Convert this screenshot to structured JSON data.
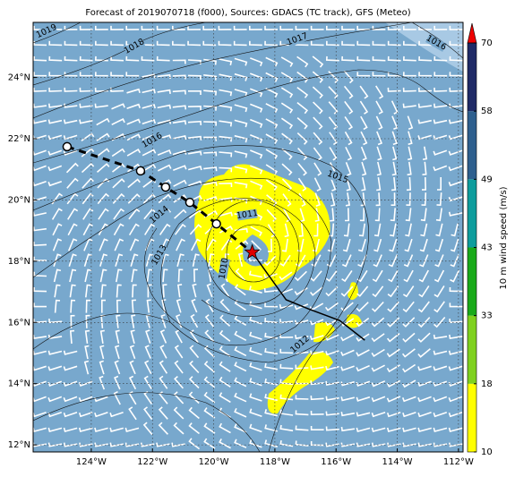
{
  "map": {
    "title": "Forecast of 2019070718 (f000), Sources: GDACS (TC track), GFS (Meteo)",
    "lonlim": [
      -125.9,
      -111.85
    ],
    "latlim": [
      11.77,
      25.8
    ],
    "lon_ticks": [
      {
        "value": -124,
        "label": "124°W"
      },
      {
        "value": -122,
        "label": "122°W"
      },
      {
        "value": -120,
        "label": "120°W"
      },
      {
        "value": -118,
        "label": "118°W"
      },
      {
        "value": -116,
        "label": "116°W"
      },
      {
        "value": -114,
        "label": "114°W"
      },
      {
        "value": -112,
        "label": "112°W"
      }
    ],
    "lat_ticks": [
      {
        "value": 12,
        "label": "12°N"
      },
      {
        "value": 14,
        "label": "14°N"
      },
      {
        "value": 16,
        "label": "16°N"
      },
      {
        "value": 18,
        "label": "18°N"
      },
      {
        "value": 20,
        "label": "20°N"
      },
      {
        "value": 22,
        "label": "22°N"
      },
      {
        "value": 24,
        "label": "24°N"
      }
    ],
    "isobar_labels": [
      "1019",
      "1018",
      "1017",
      "1016",
      "1016",
      "1015",
      "1014",
      "1013",
      "1012",
      "1011",
      "1010"
    ],
    "track": {
      "past_lon": [
        -124.79,
        -122.39,
        -121.57,
        -120.78,
        -119.91
      ],
      "past_lat": [
        21.74,
        20.95,
        20.42,
        19.92,
        19.22
      ],
      "current": [
        -118.74,
        18.29
      ],
      "forecast_lon": [
        -118.74,
        -117.63,
        -116.9,
        -115.88,
        -115.06
      ],
      "forecast_lat": [
        18.29,
        16.74,
        16.44,
        16.06,
        15.42
      ]
    },
    "colorbar": {
      "label": "10 m wind speed (m/s)",
      "ticks": [
        10,
        18,
        33,
        43,
        49,
        58,
        70
      ],
      "colors": [
        "#ffff00",
        "#7fd11f",
        "#1aaa1a",
        "#0e9d9d",
        "#2e5f8e",
        "#1f2a66"
      ],
      "extend_color": "#ee0000"
    }
  }
}
